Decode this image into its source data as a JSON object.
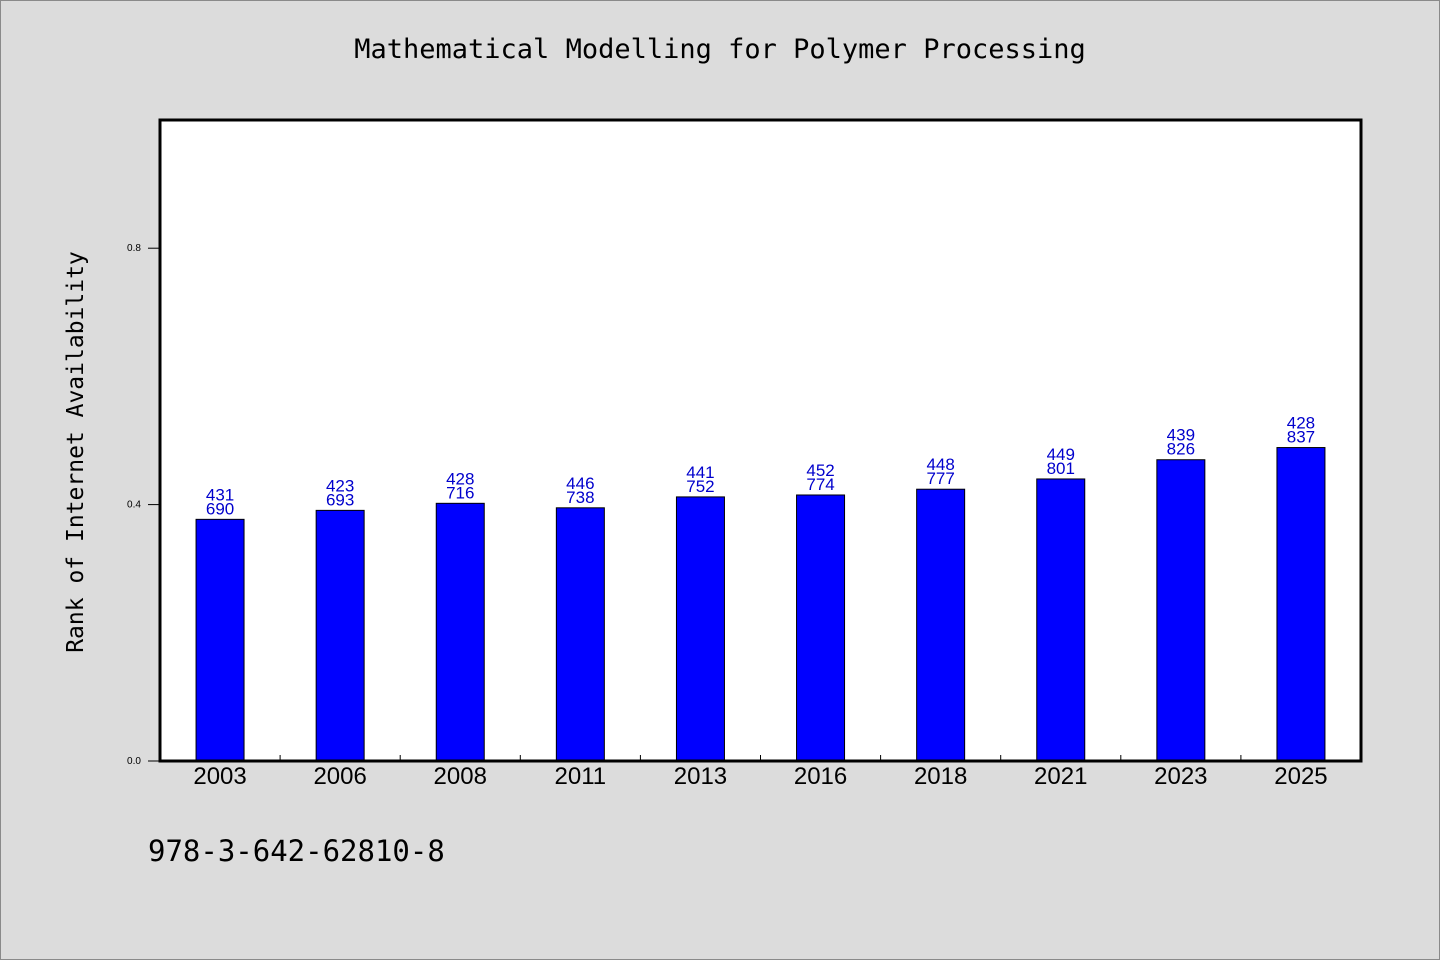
{
  "chart_data": {
    "type": "bar",
    "title": "Mathematical Modelling for Polymer Processing",
    "xlabel": "",
    "ylabel": "Rank of Internet Availability",
    "categories": [
      "2003",
      "2006",
      "2008",
      "2011",
      "2013",
      "2016",
      "2018",
      "2021",
      "2023",
      "2025"
    ],
    "values": [
      0.377,
      0.391,
      0.402,
      0.395,
      0.412,
      0.415,
      0.424,
      0.44,
      0.47,
      0.489
    ],
    "data_labels_top": [
      "431",
      "423",
      "428",
      "446",
      "441",
      "452",
      "448",
      "449",
      "439",
      "428"
    ],
    "data_labels_bottom": [
      "690",
      "693",
      "716",
      "738",
      "752",
      "774",
      "777",
      "801",
      "826",
      "837"
    ],
    "y_ticks": [
      0.0,
      0.4,
      0.8
    ],
    "y_tick_labels": [
      "0.0",
      "0.4",
      "0.8"
    ],
    "ylim": [
      0,
      1.0
    ],
    "grid": false,
    "legend": "none",
    "colors": {
      "bar": "#0000ff",
      "bar_edge": "#000000",
      "data_label": "#0000cc",
      "background": "#dcdcdc",
      "plot_area": "#ffffff"
    }
  },
  "footer": {
    "code": "978-3-642-62810-8"
  }
}
